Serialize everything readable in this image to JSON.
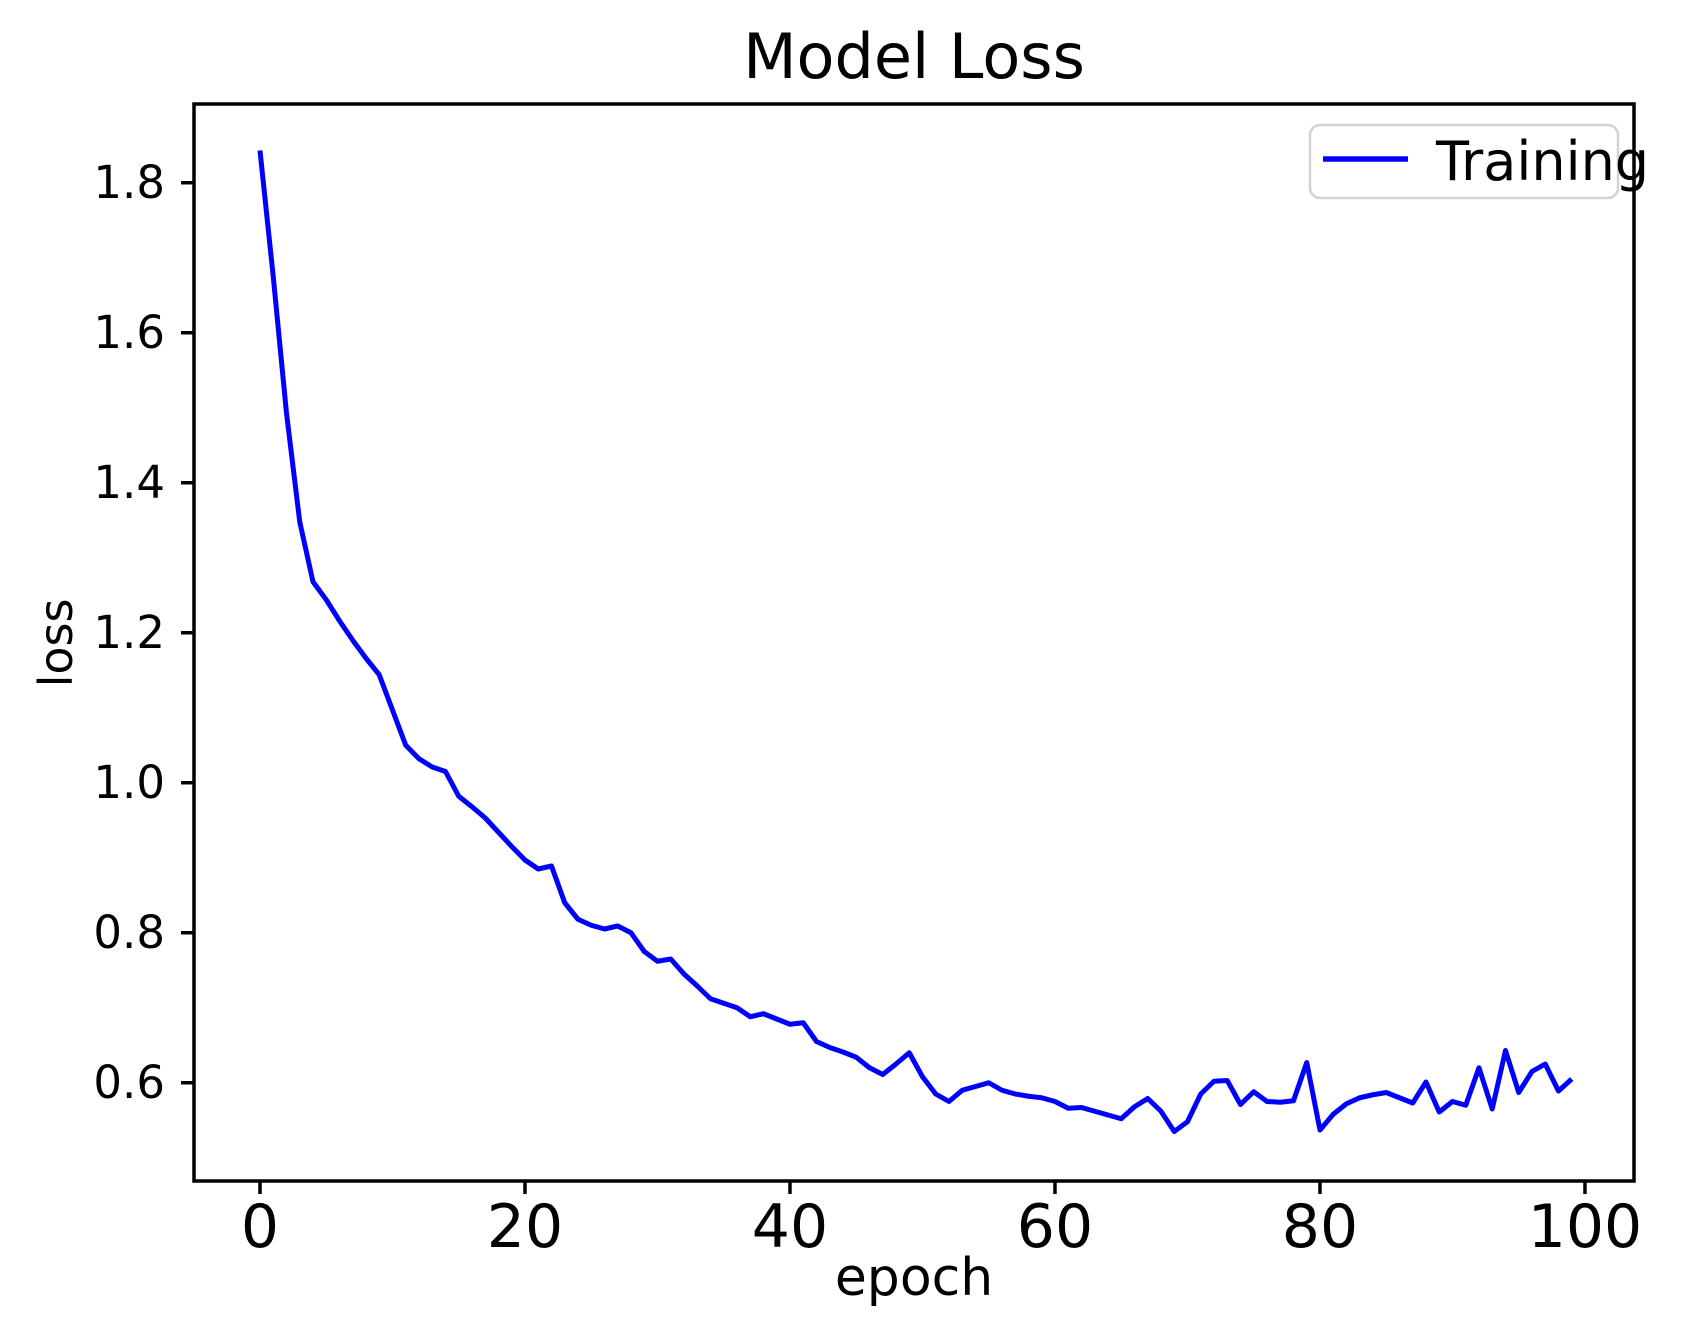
{
  "figure": {
    "background": "#ffffff",
    "spine_color": "#000000",
    "text_color": "#000000",
    "legend_border_color": "#d3d3d3",
    "legend_fill": "#ffffff"
  },
  "chart_data": {
    "type": "line",
    "title": "Model Loss",
    "xlabel": "epoch",
    "ylabel": "loss",
    "grid": false,
    "legend_position": "upper right",
    "xlim": [
      -4.98,
      103.7
    ],
    "ylim": [
      0.469,
      1.905
    ],
    "xticks": [
      0,
      20,
      40,
      60,
      80,
      100
    ],
    "xtick_labels": [
      "0",
      "20",
      "40",
      "60",
      "80",
      "100"
    ],
    "yticks": [
      0.6,
      0.8,
      1.0,
      1.2,
      1.4,
      1.6,
      1.8
    ],
    "ytick_labels": [
      "0.6",
      "0.8",
      "1.0",
      "1.2",
      "1.4",
      "1.6",
      "1.8"
    ],
    "series": [
      {
        "name": "Training",
        "color": "#0000FF",
        "x": [
          0,
          1,
          2,
          3,
          4,
          5,
          6,
          7,
          8,
          9,
          10,
          11,
          12,
          13,
          14,
          15,
          16,
          17,
          18,
          19,
          20,
          21,
          22,
          23,
          24,
          25,
          26,
          27,
          28,
          29,
          30,
          31,
          32,
          33,
          34,
          35,
          36,
          37,
          38,
          39,
          40,
          41,
          42,
          43,
          44,
          45,
          46,
          47,
          48,
          49,
          50,
          51,
          52,
          53,
          54,
          55,
          56,
          57,
          58,
          59,
          60,
          61,
          62,
          63,
          64,
          65,
          66,
          67,
          68,
          69,
          70,
          71,
          72,
          73,
          74,
          75,
          76,
          77,
          78,
          79,
          80,
          81,
          82,
          83,
          84,
          85,
          86,
          87,
          88,
          89,
          90,
          91,
          92,
          93,
          94,
          95,
          96,
          97,
          98,
          99
        ],
        "values": [
          1.843,
          1.675,
          1.493,
          1.348,
          1.268,
          1.244,
          1.216,
          1.19,
          1.166,
          1.144,
          1.097,
          1.05,
          1.032,
          1.021,
          1.015,
          0.982,
          0.968,
          0.953,
          0.934,
          0.915,
          0.897,
          0.885,
          0.889,
          0.84,
          0.818,
          0.81,
          0.805,
          0.809,
          0.8,
          0.775,
          0.762,
          0.765,
          0.745,
          0.729,
          0.712,
          0.706,
          0.7,
          0.688,
          0.692,
          0.685,
          0.678,
          0.68,
          0.655,
          0.647,
          0.641,
          0.634,
          0.62,
          0.611,
          0.625,
          0.64,
          0.608,
          0.585,
          0.575,
          0.59,
          0.595,
          0.6,
          0.59,
          0.585,
          0.582,
          0.58,
          0.575,
          0.566,
          0.567,
          0.562,
          0.557,
          0.552,
          0.568,
          0.579,
          0.562,
          0.535,
          0.548,
          0.585,
          0.602,
          0.603,
          0.571,
          0.588,
          0.575,
          0.574,
          0.576,
          0.627,
          0.537,
          0.558,
          0.572,
          0.58,
          0.584,
          0.587,
          0.58,
          0.573,
          0.601,
          0.561,
          0.575,
          0.57,
          0.62,
          0.565,
          0.643,
          0.587,
          0.615,
          0.625,
          0.589,
          0.605
        ]
      }
    ]
  },
  "legend": {
    "entries": [
      {
        "label": "Training",
        "color": "#0000FF"
      }
    ]
  }
}
